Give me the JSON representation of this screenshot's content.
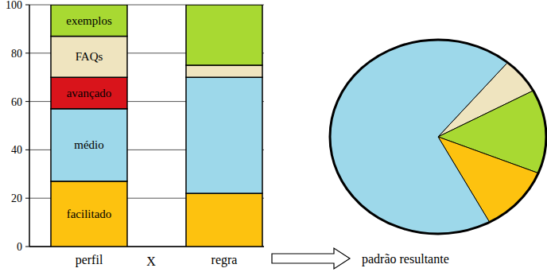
{
  "chart_data": [
    {
      "type": "bar",
      "stacked": true,
      "grid": true,
      "categories": [
        "perfil",
        "regra"
      ],
      "annotation": "X",
      "ylim": [
        0,
        100
      ],
      "yticks": [
        0,
        20,
        40,
        60,
        80,
        100
      ],
      "series": [
        {
          "name": "facilitado",
          "color": "#fdc20f",
          "values": [
            27,
            22
          ]
        },
        {
          "name": "médio",
          "color": "#9dd8ea",
          "values": [
            30,
            48
          ]
        },
        {
          "name": "avançado",
          "color": "#d9141b",
          "values": [
            13,
            0
          ]
        },
        {
          "name": "FAQs",
          "color": "#efe4bf",
          "values": [
            17,
            5
          ]
        },
        {
          "name": "exemplos",
          "color": "#a8d932",
          "values": [
            13,
            25
          ]
        }
      ]
    },
    {
      "type": "pie",
      "title": "padrão resultante",
      "values": [
        6,
        14,
        11,
        69
      ],
      "colors": [
        "#efe4bf",
        "#a8d932",
        "#fdc20f",
        "#9dd8ea"
      ]
    }
  ]
}
